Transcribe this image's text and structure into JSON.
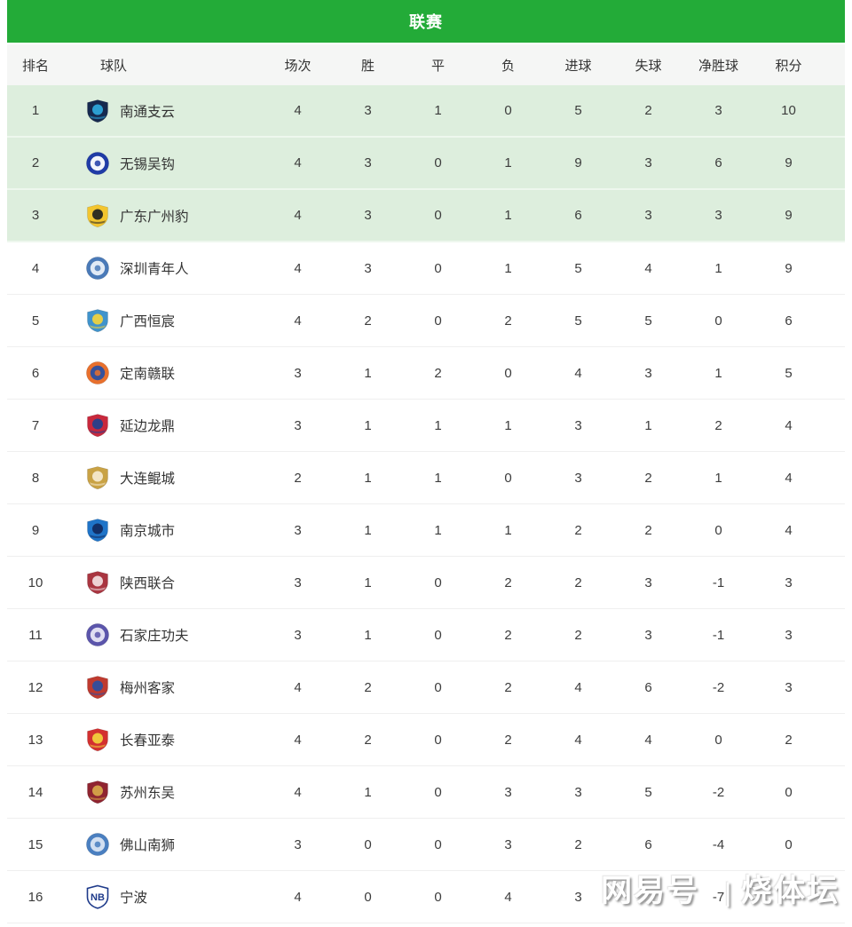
{
  "header": {
    "title": "联赛"
  },
  "colors": {
    "header_green": "#23ab38",
    "highlight_row_bg": "#ddeedd",
    "thead_bg": "#f5f6f5"
  },
  "watermark": {
    "left": "网易号",
    "divider": "|",
    "right": "烧体坛"
  },
  "table": {
    "columns": [
      "排名",
      "球队",
      "场次",
      "胜",
      "平",
      "负",
      "进球",
      "失球",
      "净胜球",
      "积分"
    ],
    "stat_keys": [
      "matches",
      "wins",
      "draws",
      "losses",
      "goals-for",
      "goals-against",
      "goal-diff",
      "points"
    ],
    "rows": [
      {
        "rank": "1",
        "team": "南通支云",
        "highlight": true,
        "logo": {
          "shape": "shield",
          "primary": "#16294f",
          "secondary": "#2fa8dd"
        },
        "stats": [
          "4",
          "3",
          "1",
          "0",
          "5",
          "2",
          "3",
          "10"
        ]
      },
      {
        "rank": "2",
        "team": "无锡吴钩",
        "highlight": true,
        "logo": {
          "shape": "circle",
          "primary": "#1f3ba6",
          "secondary": "#ffffff"
        },
        "stats": [
          "4",
          "3",
          "0",
          "1",
          "9",
          "3",
          "6",
          "9"
        ]
      },
      {
        "rank": "3",
        "team": "广东广州豹",
        "highlight": true,
        "logo": {
          "shape": "shield",
          "primary": "#f3c52f",
          "secondary": "#222222"
        },
        "stats": [
          "4",
          "3",
          "0",
          "1",
          "6",
          "3",
          "3",
          "9"
        ]
      },
      {
        "rank": "4",
        "team": "深圳青年人",
        "highlight": false,
        "logo": {
          "shape": "circle",
          "primary": "#4a7ab8",
          "secondary": "#e9f0f8"
        },
        "stats": [
          "4",
          "3",
          "0",
          "1",
          "5",
          "4",
          "1",
          "9"
        ]
      },
      {
        "rank": "5",
        "team": "广西恒宸",
        "highlight": false,
        "logo": {
          "shape": "shield",
          "primary": "#3f93cc",
          "secondary": "#f2d23d"
        },
        "stats": [
          "4",
          "2",
          "0",
          "2",
          "5",
          "5",
          "0",
          "6"
        ]
      },
      {
        "rank": "6",
        "team": "定南赣联",
        "highlight": false,
        "logo": {
          "shape": "circle",
          "primary": "#e8702d",
          "secondary": "#2b4fa2"
        },
        "stats": [
          "3",
          "1",
          "2",
          "0",
          "4",
          "3",
          "1",
          "5"
        ]
      },
      {
        "rank": "7",
        "team": "延边龙鼎",
        "highlight": false,
        "logo": {
          "shape": "shield",
          "primary": "#c8283c",
          "secondary": "#21418f"
        },
        "stats": [
          "3",
          "1",
          "1",
          "1",
          "3",
          "1",
          "2",
          "4"
        ]
      },
      {
        "rank": "8",
        "team": "大连鲲城",
        "highlight": false,
        "logo": {
          "shape": "shield",
          "primary": "#c9a244",
          "secondary": "#f6ead0"
        },
        "stats": [
          "2",
          "1",
          "1",
          "0",
          "3",
          "2",
          "1",
          "4"
        ]
      },
      {
        "rank": "9",
        "team": "南京城市",
        "highlight": false,
        "logo": {
          "shape": "shield",
          "primary": "#1f74c8",
          "secondary": "#11295e"
        },
        "stats": [
          "3",
          "1",
          "1",
          "1",
          "2",
          "2",
          "0",
          "4"
        ]
      },
      {
        "rank": "10",
        "team": "陕西联合",
        "highlight": false,
        "logo": {
          "shape": "shield",
          "primary": "#a93540",
          "secondary": "#f3dfe1"
        },
        "stats": [
          "3",
          "1",
          "0",
          "2",
          "2",
          "3",
          "-1",
          "3"
        ]
      },
      {
        "rank": "11",
        "team": "石家庄功夫",
        "highlight": false,
        "logo": {
          "shape": "circle",
          "primary": "#5b55ab",
          "secondary": "#e8e6f5"
        },
        "stats": [
          "3",
          "1",
          "0",
          "2",
          "2",
          "3",
          "-1",
          "3"
        ]
      },
      {
        "rank": "12",
        "team": "梅州客家",
        "highlight": false,
        "logo": {
          "shape": "shield",
          "primary": "#bf3a2f",
          "secondary": "#2b4fa2"
        },
        "stats": [
          "4",
          "2",
          "0",
          "2",
          "4",
          "6",
          "-2",
          "3"
        ]
      },
      {
        "rank": "13",
        "team": "长春亚泰",
        "highlight": false,
        "logo": {
          "shape": "shield",
          "primary": "#d33030",
          "secondary": "#f2d23d"
        },
        "stats": [
          "4",
          "2",
          "0",
          "2",
          "4",
          "4",
          "0",
          "2"
        ]
      },
      {
        "rank": "14",
        "team": "苏州东吴",
        "highlight": false,
        "logo": {
          "shape": "shield",
          "primary": "#8f2430",
          "secondary": "#d8a84a"
        },
        "stats": [
          "4",
          "1",
          "0",
          "3",
          "3",
          "5",
          "-2",
          "0"
        ]
      },
      {
        "rank": "15",
        "team": "佛山南狮",
        "highlight": false,
        "logo": {
          "shape": "circle",
          "primary": "#4a7fc0",
          "secondary": "#d9e5f3"
        },
        "stats": [
          "3",
          "0",
          "0",
          "3",
          "2",
          "6",
          "-4",
          "0"
        ]
      },
      {
        "rank": "16",
        "team": "宁波",
        "highlight": false,
        "logo": {
          "shape": "text",
          "primary": "#ffffff",
          "secondary": "#1e3a8a",
          "text": "NB"
        },
        "stats": [
          "4",
          "0",
          "0",
          "4",
          "3",
          "",
          "-7",
          ""
        ]
      }
    ]
  }
}
